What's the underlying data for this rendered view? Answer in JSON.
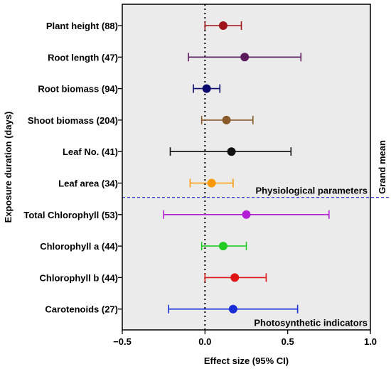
{
  "chart_data": {
    "type": "forest",
    "xlabel": "Effect size (95% CI)",
    "ylabel": "Exposure duration (days)",
    "right_label": "Grand mean",
    "xlim": [
      -0.5,
      1.0
    ],
    "xticks": [
      "−0.5",
      "0.0",
      "0.5",
      "1.0"
    ],
    "xtick_values": [
      -0.5,
      0.0,
      0.5,
      1.0
    ],
    "reference_line": 0,
    "background": "#ebebeb",
    "divider_color": "#3b3bd6",
    "sections": [
      {
        "label": "Physiological parameters",
        "after_index": 5
      },
      {
        "label": "Photosynthetic indicators",
        "after_index": 9
      }
    ],
    "rows": [
      {
        "label": "Plant height (88)",
        "mean": 0.11,
        "lower": 0.0,
        "upper": 0.22,
        "color": "#a0131a"
      },
      {
        "label": "Root length (47)",
        "mean": 0.24,
        "lower": -0.1,
        "upper": 0.58,
        "color": "#5c1a5c"
      },
      {
        "label": "Root biomass (94)",
        "mean": 0.01,
        "lower": -0.07,
        "upper": 0.09,
        "color": "#0a0a6e"
      },
      {
        "label": "Shoot biomass (204)",
        "mean": 0.13,
        "lower": -0.02,
        "upper": 0.29,
        "color": "#8b5a2b"
      },
      {
        "label": "Leaf No. (41)",
        "mean": 0.16,
        "lower": -0.21,
        "upper": 0.52,
        "color": "#111111"
      },
      {
        "label": "Leaf area (34)",
        "mean": 0.04,
        "lower": -0.09,
        "upper": 0.17,
        "color": "#ff9900"
      },
      {
        "label": "Total Chlorophyll (53)",
        "mean": 0.25,
        "lower": -0.25,
        "upper": 0.75,
        "color": "#b21fd6"
      },
      {
        "label": "Chlorophyll a (44)",
        "mean": 0.11,
        "lower": -0.02,
        "upper": 0.25,
        "color": "#22cc22"
      },
      {
        "label": "Chlorophyll b (44)",
        "mean": 0.18,
        "lower": 0.0,
        "upper": 0.37,
        "color": "#e01515"
      },
      {
        "label": "Carotenoids (27)",
        "mean": 0.17,
        "lower": -0.22,
        "upper": 0.56,
        "color": "#1a2ed6"
      }
    ]
  }
}
